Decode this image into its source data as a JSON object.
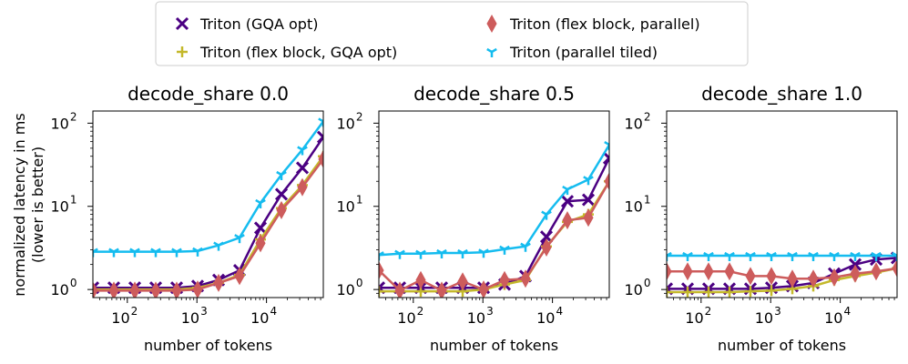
{
  "legend": {
    "entries": [
      {
        "label": "Triton (GQA opt)",
        "marker": "x",
        "color": "#4b0082"
      },
      {
        "label": "Triton (flex block, GQA opt)",
        "marker": "plus",
        "color": "#c4b82b"
      },
      {
        "label": "Triton (flex block, parallel)",
        "marker": "diamond",
        "color": "#cd5c5c"
      },
      {
        "label": "Triton (parallel tiled)",
        "marker": "tri",
        "color": "#15bcef"
      }
    ]
  },
  "shared": {
    "ylabel_line1": "normalized latency in ms",
    "ylabel_line2": "(lower is better)",
    "xlabel": "number of tokens"
  },
  "chart_data": [
    {
      "type": "line",
      "title": "decode_share 0.0",
      "xscale": "log",
      "yscale": "log",
      "xlim": [
        32,
        65536
      ],
      "ylim": [
        0.8,
        140
      ],
      "x": [
        32,
        64,
        128,
        256,
        512,
        1024,
        2048,
        4096,
        8192,
        16384,
        32768,
        65536
      ],
      "xticks": [
        {
          "value": 100,
          "base": "10",
          "exp": "2"
        },
        {
          "value": 1000,
          "base": "10",
          "exp": "3"
        },
        {
          "value": 10000,
          "base": "10",
          "exp": "4"
        }
      ],
      "yticks": [
        {
          "value": 1,
          "base": "10",
          "exp": "0"
        },
        {
          "value": 10,
          "base": "10",
          "exp": "1"
        },
        {
          "value": 100,
          "base": "10",
          "exp": "2"
        }
      ],
      "series": [
        {
          "name": "Triton (GQA opt)",
          "values": [
            1.05,
            1.05,
            1.05,
            1.05,
            1.05,
            1.1,
            1.3,
            1.7,
            5.5,
            14,
            29,
            68
          ]
        },
        {
          "name": "Triton (flex block, GQA opt)",
          "values": [
            1.0,
            1.0,
            1.0,
            1.0,
            1.0,
            1.05,
            1.2,
            1.5,
            4.0,
            9.5,
            18,
            40
          ]
        },
        {
          "name": "Triton (flex block, parallel)",
          "values": [
            0.97,
            0.97,
            0.97,
            0.97,
            0.97,
            1.0,
            1.2,
            1.45,
            3.6,
            9,
            17,
            37
          ]
        },
        {
          "name": "Triton (parallel tiled)",
          "values": [
            2.85,
            2.85,
            2.85,
            2.85,
            2.85,
            2.9,
            3.4,
            4.2,
            11,
            24,
            48,
            105
          ]
        }
      ]
    },
    {
      "type": "line",
      "title": "decode_share 0.5",
      "xscale": "log",
      "yscale": "log",
      "xlim": [
        32,
        65536
      ],
      "ylim": [
        0.8,
        140
      ],
      "x": [
        32,
        64,
        128,
        256,
        512,
        1024,
        2048,
        4096,
        8192,
        16384,
        32768,
        65536
      ],
      "xticks": [
        {
          "value": 100,
          "base": "10",
          "exp": "2"
        },
        {
          "value": 1000,
          "base": "10",
          "exp": "3"
        },
        {
          "value": 10000,
          "base": "10",
          "exp": "4"
        }
      ],
      "yticks": [
        {
          "value": 1,
          "base": "10",
          "exp": "0"
        },
        {
          "value": 10,
          "base": "10",
          "exp": "1"
        },
        {
          "value": 100,
          "base": "10",
          "exp": "2"
        }
      ],
      "series": [
        {
          "name": "Triton (GQA opt)",
          "values": [
            1.05,
            1.05,
            1.05,
            1.05,
            1.05,
            1.05,
            1.15,
            1.45,
            4.3,
            11.5,
            12,
            38
          ]
        },
        {
          "name": "Triton (flex block, GQA opt)",
          "values": [
            0.95,
            0.95,
            0.95,
            0.95,
            0.95,
            1.0,
            1.15,
            1.3,
            3.3,
            6.5,
            8,
            20
          ]
        },
        {
          "name": "Triton (flex block, parallel)",
          "values": [
            1.7,
            0.97,
            1.3,
            0.97,
            1.25,
            1.0,
            1.3,
            1.35,
            3.2,
            6.8,
            7.3,
            20
          ]
        },
        {
          "name": "Triton (parallel tiled)",
          "values": [
            2.6,
            2.7,
            2.7,
            2.75,
            2.75,
            2.8,
            3.05,
            3.3,
            8,
            16,
            21,
            55
          ]
        }
      ]
    },
    {
      "type": "line",
      "title": "decode_share 1.0",
      "xscale": "log",
      "yscale": "log",
      "xlim": [
        32,
        65536
      ],
      "ylim": [
        0.8,
        140
      ],
      "x": [
        32,
        64,
        128,
        256,
        512,
        1024,
        2048,
        4096,
        8192,
        16384,
        32768,
        65536
      ],
      "xticks": [
        {
          "value": 100,
          "base": "10",
          "exp": "2"
        },
        {
          "value": 1000,
          "base": "10",
          "exp": "3"
        },
        {
          "value": 10000,
          "base": "10",
          "exp": "4"
        }
      ],
      "yticks": [
        {
          "value": 1,
          "base": "10",
          "exp": "0"
        },
        {
          "value": 10,
          "base": "10",
          "exp": "1"
        },
        {
          "value": 100,
          "base": "10",
          "exp": "2"
        }
      ],
      "series": [
        {
          "name": "Triton (GQA opt)",
          "values": [
            1.02,
            1.02,
            1.02,
            1.02,
            1.02,
            1.05,
            1.1,
            1.2,
            1.55,
            2.0,
            2.3,
            2.4
          ]
        },
        {
          "name": "Triton (flex block, GQA opt)",
          "values": [
            0.93,
            0.93,
            0.93,
            0.93,
            0.95,
            0.97,
            1.02,
            1.1,
            1.3,
            1.45,
            1.6,
            1.8
          ]
        },
        {
          "name": "Triton (flex block, parallel)",
          "values": [
            1.65,
            1.65,
            1.65,
            1.65,
            1.45,
            1.45,
            1.35,
            1.35,
            1.4,
            1.55,
            1.65,
            1.8
          ]
        },
        {
          "name": "Triton (parallel tiled)",
          "values": [
            2.55,
            2.55,
            2.55,
            2.55,
            2.55,
            2.55,
            2.55,
            2.55,
            2.55,
            2.55,
            2.55,
            2.55
          ]
        }
      ]
    }
  ]
}
